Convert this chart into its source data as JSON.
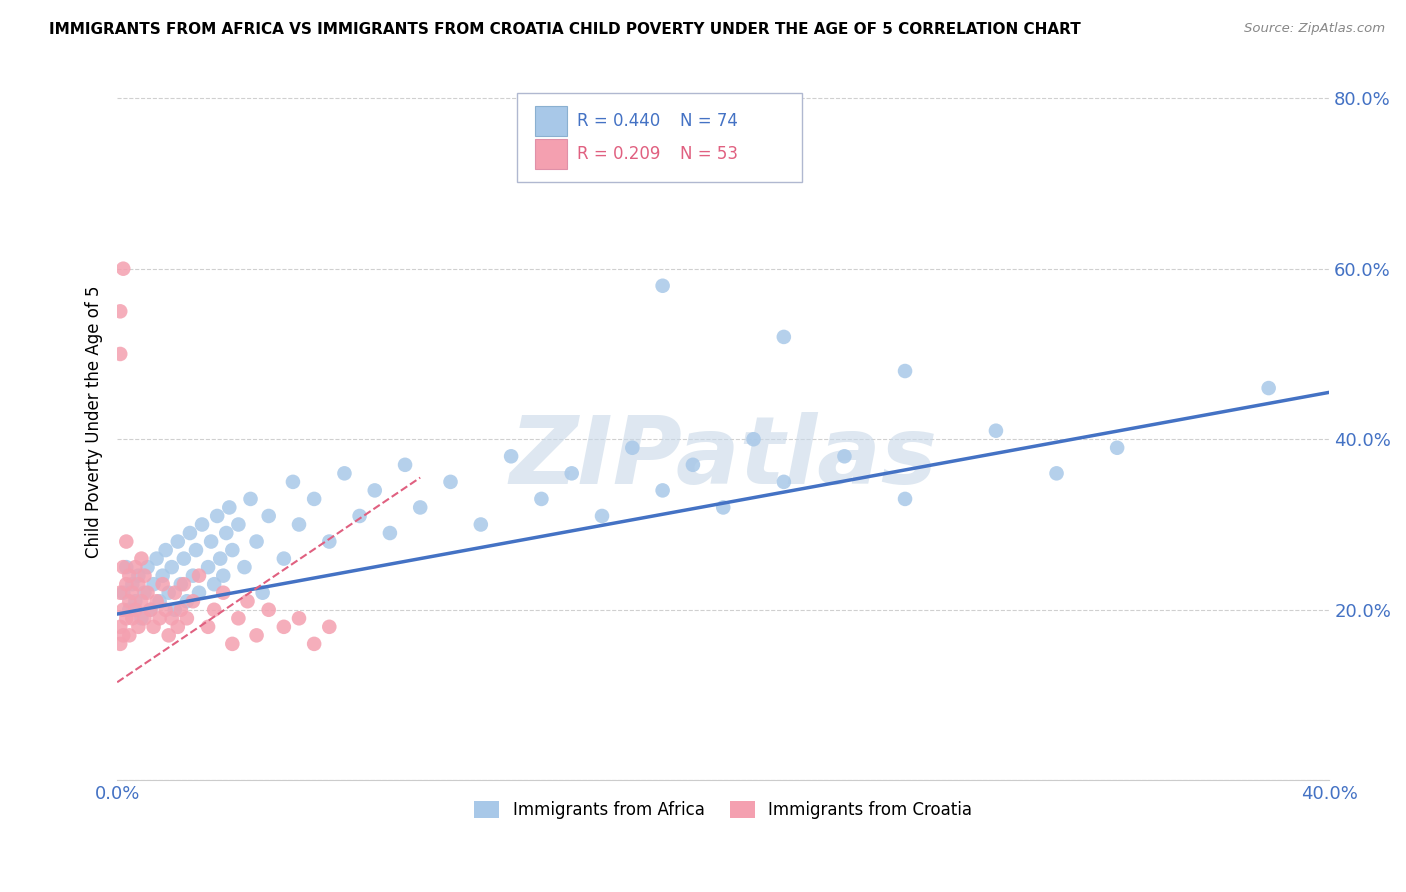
{
  "title": "IMMIGRANTS FROM AFRICA VS IMMIGRANTS FROM CROATIA CHILD POVERTY UNDER THE AGE OF 5 CORRELATION CHART",
  "source": "Source: ZipAtlas.com",
  "ylabel": "Child Poverty Under the Age of 5",
  "xlim": [
    0.0,
    0.4
  ],
  "ylim": [
    0.0,
    0.84
  ],
  "xticks": [
    0.0,
    0.05,
    0.1,
    0.15,
    0.2,
    0.25,
    0.3,
    0.35,
    0.4
  ],
  "yticks_right": [
    0.0,
    0.2,
    0.4,
    0.6,
    0.8
  ],
  "yticklabels_right": [
    "",
    "20.0%",
    "40.0%",
    "60.0%",
    "80.0%"
  ],
  "legend_r1": "R = 0.440",
  "legend_n1": "N = 74",
  "legend_r2": "R = 0.209",
  "legend_n2": "N = 53",
  "color_africa": "#a8c8e8",
  "color_croatia": "#f4a0b0",
  "color_africa_line": "#4472c4",
  "color_croatia_line": "#e06080",
  "color_legend_text_r": "#4472c4",
  "color_legend_text_n": "#4472c4",
  "color_legend_text2_r": "#e06080",
  "color_legend_text2_n": "#e06080",
  "watermark": "ZIPatlas",
  "watermark_color": "#c8d8e8",
  "africa_line_x": [
    0.0,
    0.4
  ],
  "africa_line_y": [
    0.195,
    0.455
  ],
  "croatia_line_x": [
    0.0,
    0.1
  ],
  "croatia_line_y": [
    0.115,
    0.355
  ],
  "africa_x": [
    0.002,
    0.003,
    0.004,
    0.005,
    0.006,
    0.007,
    0.008,
    0.009,
    0.01,
    0.011,
    0.012,
    0.013,
    0.014,
    0.015,
    0.016,
    0.017,
    0.018,
    0.019,
    0.02,
    0.021,
    0.022,
    0.023,
    0.024,
    0.025,
    0.026,
    0.027,
    0.028,
    0.03,
    0.031,
    0.032,
    0.033,
    0.034,
    0.035,
    0.036,
    0.037,
    0.038,
    0.04,
    0.042,
    0.044,
    0.046,
    0.048,
    0.05,
    0.055,
    0.058,
    0.06,
    0.065,
    0.07,
    0.075,
    0.08,
    0.085,
    0.09,
    0.095,
    0.1,
    0.11,
    0.12,
    0.13,
    0.14,
    0.15,
    0.16,
    0.17,
    0.18,
    0.19,
    0.2,
    0.21,
    0.22,
    0.24,
    0.26,
    0.29,
    0.31,
    0.33,
    0.18,
    0.22,
    0.26,
    0.38
  ],
  "africa_y": [
    0.22,
    0.25,
    0.2,
    0.23,
    0.21,
    0.24,
    0.19,
    0.22,
    0.25,
    0.2,
    0.23,
    0.26,
    0.21,
    0.24,
    0.27,
    0.22,
    0.25,
    0.2,
    0.28,
    0.23,
    0.26,
    0.21,
    0.29,
    0.24,
    0.27,
    0.22,
    0.3,
    0.25,
    0.28,
    0.23,
    0.31,
    0.26,
    0.24,
    0.29,
    0.32,
    0.27,
    0.3,
    0.25,
    0.33,
    0.28,
    0.22,
    0.31,
    0.26,
    0.35,
    0.3,
    0.33,
    0.28,
    0.36,
    0.31,
    0.34,
    0.29,
    0.37,
    0.32,
    0.35,
    0.3,
    0.38,
    0.33,
    0.36,
    0.31,
    0.39,
    0.34,
    0.37,
    0.32,
    0.4,
    0.35,
    0.38,
    0.33,
    0.41,
    0.36,
    0.39,
    0.58,
    0.52,
    0.48,
    0.46
  ],
  "croatia_x": [
    0.001,
    0.001,
    0.001,
    0.002,
    0.002,
    0.002,
    0.003,
    0.003,
    0.003,
    0.004,
    0.004,
    0.004,
    0.005,
    0.005,
    0.006,
    0.006,
    0.007,
    0.007,
    0.008,
    0.008,
    0.009,
    0.009,
    0.01,
    0.011,
    0.012,
    0.013,
    0.014,
    0.015,
    0.016,
    0.017,
    0.018,
    0.019,
    0.02,
    0.021,
    0.022,
    0.023,
    0.025,
    0.027,
    0.03,
    0.032,
    0.035,
    0.038,
    0.04,
    0.043,
    0.046,
    0.05,
    0.055,
    0.06,
    0.065,
    0.07,
    0.001,
    0.001,
    0.002
  ],
  "croatia_y": [
    0.18,
    0.22,
    0.16,
    0.2,
    0.25,
    0.17,
    0.19,
    0.23,
    0.28,
    0.21,
    0.17,
    0.24,
    0.19,
    0.22,
    0.2,
    0.25,
    0.18,
    0.23,
    0.21,
    0.26,
    0.19,
    0.24,
    0.22,
    0.2,
    0.18,
    0.21,
    0.19,
    0.23,
    0.2,
    0.17,
    0.19,
    0.22,
    0.18,
    0.2,
    0.23,
    0.19,
    0.21,
    0.24,
    0.18,
    0.2,
    0.22,
    0.16,
    0.19,
    0.21,
    0.17,
    0.2,
    0.18,
    0.19,
    0.16,
    0.18,
    0.55,
    0.5,
    0.6
  ]
}
